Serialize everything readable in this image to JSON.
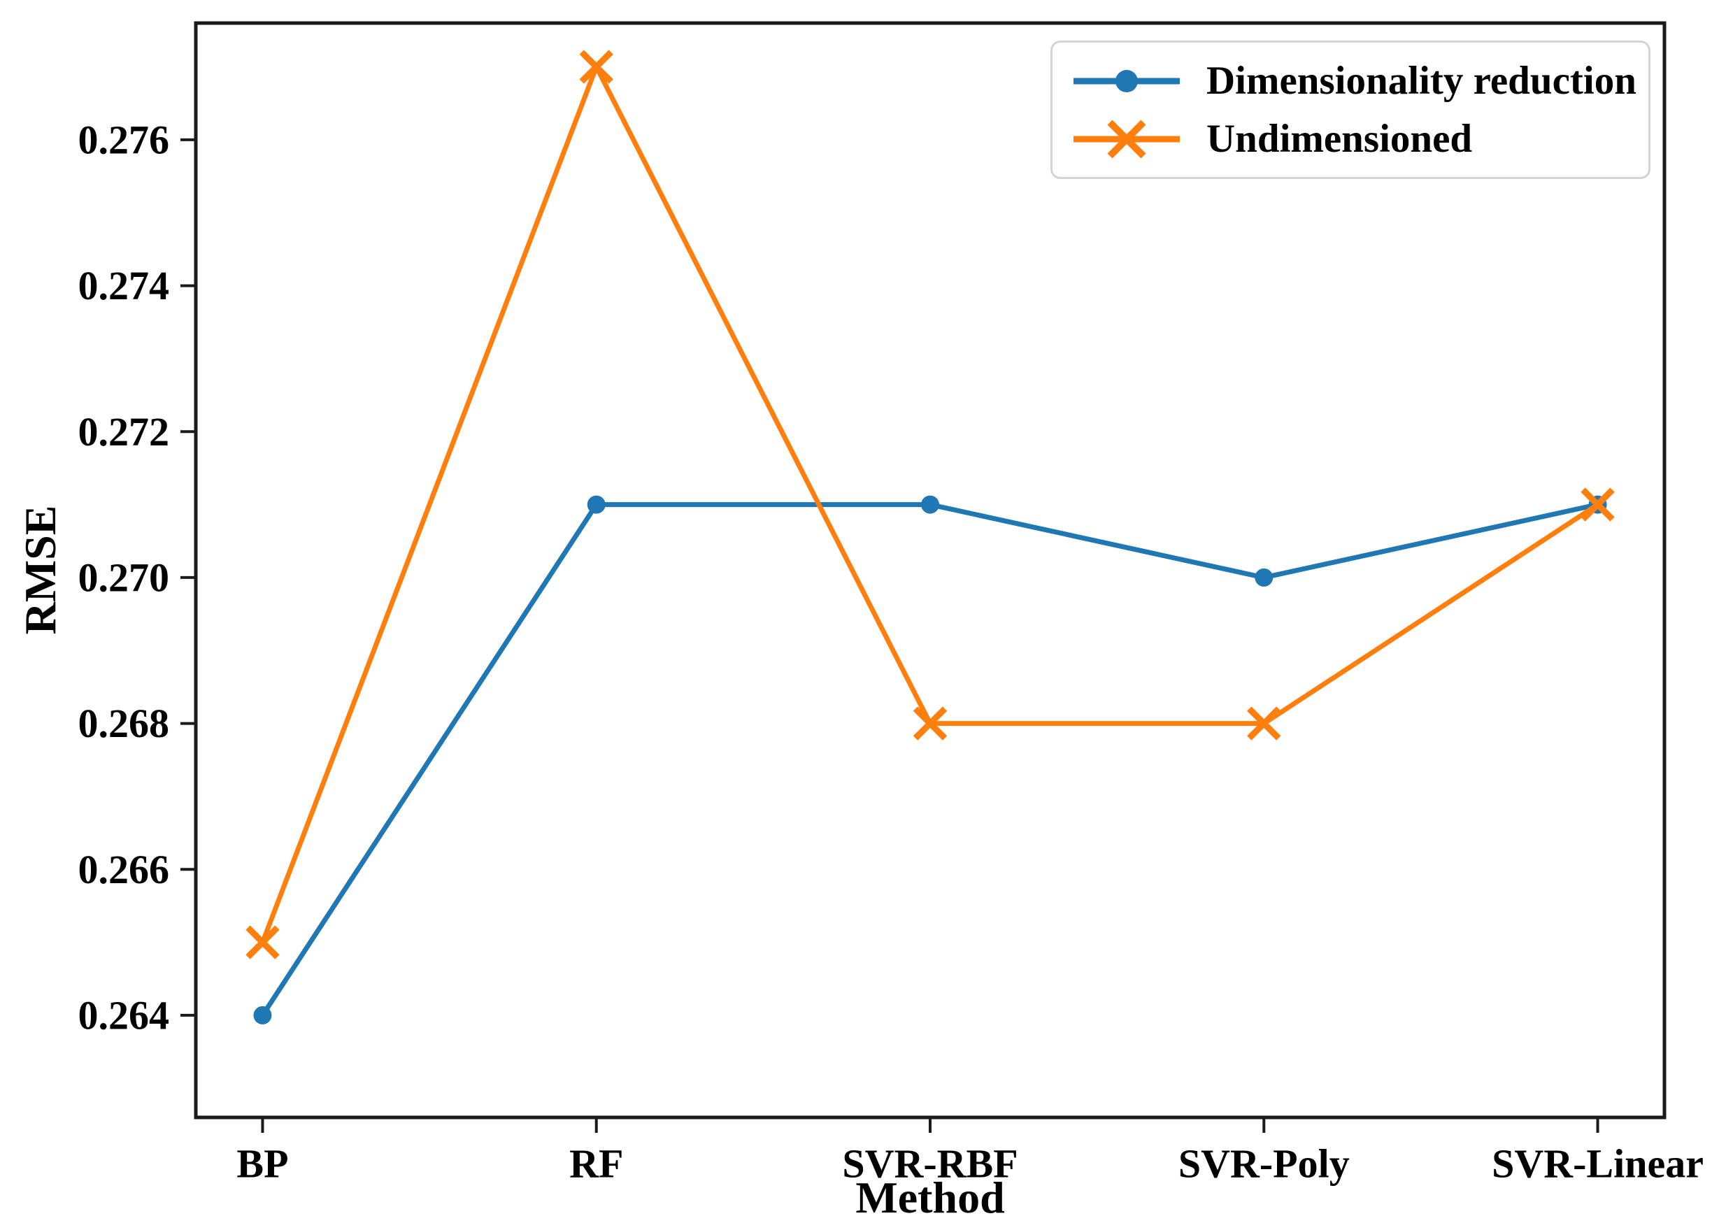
{
  "figure": {
    "background": "#ffffff",
    "axes_color": "#1a1a1a",
    "text_color": "#000000"
  },
  "chart_data": {
    "type": "line",
    "title": "",
    "xlabel": "Method",
    "ylabel": "RMSE",
    "categories": [
      "BP",
      "RF",
      "SVR-RBF",
      "SVR-Poly",
      "SVR-Linear"
    ],
    "series": [
      {
        "name": "Dimensionality reduction",
        "color": "#1f77b4",
        "marker": "circle",
        "values": [
          0.264,
          0.271,
          0.271,
          0.27,
          0.271
        ]
      },
      {
        "name": "Undimensioned",
        "color": "#ff7f0e",
        "marker": "x",
        "values": [
          0.265,
          0.277,
          0.268,
          0.268,
          0.271
        ]
      }
    ],
    "ylim": [
      0.2626,
      0.2776
    ],
    "yticks": [
      0.264,
      0.266,
      0.268,
      0.27,
      0.272,
      0.274,
      0.276
    ],
    "ytick_labels": [
      "0.264",
      "0.266",
      "0.268",
      "0.270",
      "0.272",
      "0.274",
      "0.276"
    ],
    "legend_position": "upper right",
    "grid": false
  }
}
